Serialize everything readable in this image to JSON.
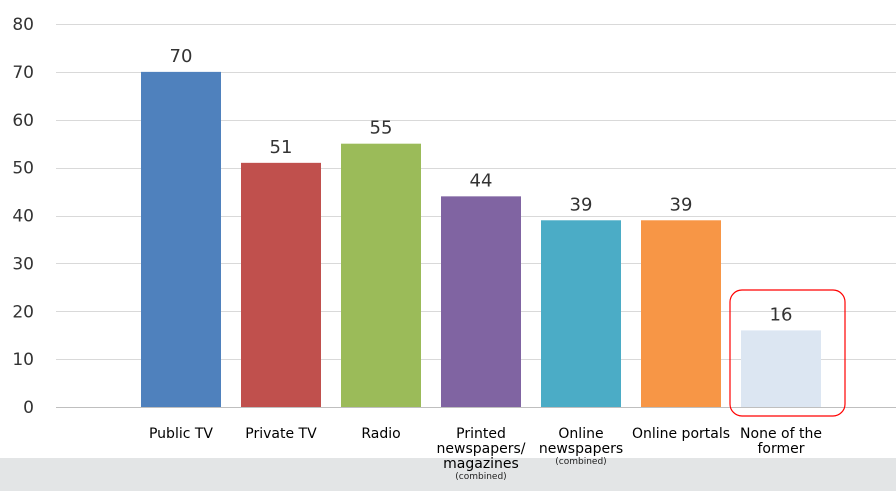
{
  "chart_data": {
    "type": "bar",
    "categories": [
      {
        "label": "Public TV",
        "sub": ""
      },
      {
        "label": "Private TV",
        "sub": ""
      },
      {
        "label": "Radio",
        "sub": ""
      },
      {
        "label": "Printed newspapers/ magazines",
        "sub": "(combined)"
      },
      {
        "label": "Online newspapers",
        "sub": "(combined)"
      },
      {
        "label": "Online portals",
        "sub": ""
      },
      {
        "label": "None of the former",
        "sub": ""
      }
    ],
    "values": [
      70,
      51,
      55,
      44,
      39,
      39,
      16
    ],
    "colors": [
      "#4f81bd",
      "#c0504d",
      "#9bbb59",
      "#8064a2",
      "#4bacc6",
      "#f79646",
      "#dce6f2"
    ],
    "ylim": [
      0,
      80
    ],
    "yticks": [
      0,
      10,
      20,
      30,
      40,
      50,
      60,
      70,
      80
    ],
    "grid": true,
    "highlight": {
      "index": 6,
      "color": "#ff0000"
    },
    "title": "",
    "xlabel": "",
    "ylabel": ""
  }
}
